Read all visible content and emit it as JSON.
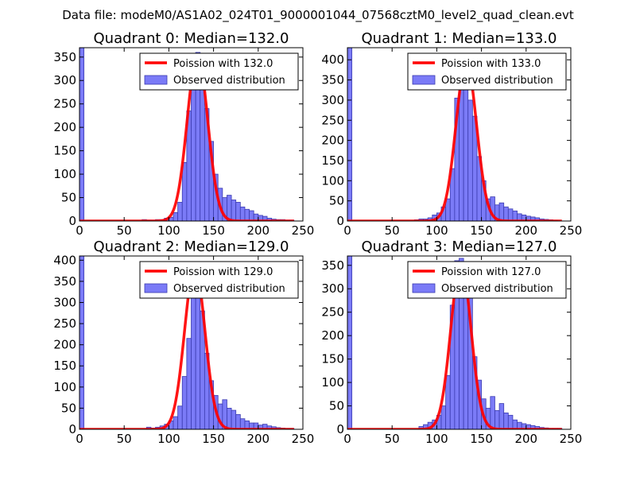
{
  "figure": {
    "suptitle": "Data file: modeM0/AS1A02_024T01_9000001044_07568cztM0_level2_quad_clean.evt"
  },
  "colors": {
    "hist_fill": "#7b7bf7",
    "hist_edge": "#3b3bb0",
    "poisson_line": "#ff0000",
    "frame": "#000000"
  },
  "chart_data": [
    {
      "type": "bar",
      "title": "Quadrant 0: Median=132.0",
      "xlim": [
        0,
        250
      ],
      "ylim": [
        0,
        370
      ],
      "xticks": [
        0,
        50,
        100,
        150,
        200,
        250
      ],
      "yticks": [
        0,
        50,
        100,
        150,
        200,
        250,
        300,
        350
      ],
      "legend": [
        "Poission with 132.0",
        "Observed distribution"
      ],
      "bin_edges": [
        0,
        5,
        70,
        75,
        80,
        85,
        90,
        95,
        100,
        105,
        110,
        115,
        120,
        125,
        130,
        135,
        140,
        145,
        150,
        155,
        160,
        165,
        170,
        175,
        180,
        185,
        190,
        195,
        200,
        205,
        210,
        215,
        220,
        225,
        230,
        235,
        240
      ],
      "counts": [
        370,
        0,
        3,
        2,
        2,
        3,
        3,
        6,
        8,
        18,
        40,
        125,
        235,
        320,
        360,
        320,
        240,
        170,
        100,
        70,
        50,
        55,
        45,
        40,
        30,
        25,
        22,
        15,
        12,
        10,
        6,
        4,
        3,
        3,
        2,
        2
      ],
      "poisson": {
        "mean": 132.0,
        "peak": 355,
        "sigma": 11.5,
        "x_range": [
          0,
          240
        ]
      }
    },
    {
      "type": "bar",
      "title": "Quadrant 1: Median=133.0",
      "xlim": [
        0,
        250
      ],
      "ylim": [
        0,
        430
      ],
      "xticks": [
        0,
        50,
        100,
        150,
        200,
        250
      ],
      "yticks": [
        0,
        50,
        100,
        150,
        200,
        250,
        300,
        350,
        400
      ],
      "legend": [
        "Poission with 133.0",
        "Observed distribution"
      ],
      "bin_edges": [
        0,
        5,
        75,
        80,
        85,
        90,
        95,
        100,
        105,
        110,
        115,
        120,
        125,
        130,
        135,
        140,
        145,
        150,
        155,
        160,
        165,
        170,
        175,
        180,
        185,
        190,
        195,
        200,
        205,
        210,
        215,
        220,
        225,
        230,
        235
      ],
      "counts": [
        430,
        0,
        3,
        5,
        5,
        8,
        15,
        20,
        35,
        55,
        130,
        305,
        410,
        340,
        300,
        260,
        160,
        100,
        55,
        60,
        40,
        45,
        35,
        30,
        25,
        18,
        15,
        12,
        10,
        8,
        5,
        4,
        3,
        2
      ],
      "poisson": {
        "mean": 133.0,
        "peak": 395,
        "sigma": 11.5,
        "x_range": [
          0,
          240
        ]
      }
    },
    {
      "type": "bar",
      "title": "Quadrant 2: Median=129.0",
      "xlim": [
        0,
        250
      ],
      "ylim": [
        0,
        410
      ],
      "xticks": [
        0,
        50,
        100,
        150,
        200,
        250
      ],
      "yticks": [
        0,
        50,
        100,
        150,
        200,
        250,
        300,
        350,
        400
      ],
      "legend": [
        "Poission with 129.0",
        "Observed distribution"
      ],
      "bin_edges": [
        0,
        5,
        75,
        80,
        85,
        90,
        95,
        100,
        105,
        110,
        115,
        120,
        125,
        130,
        135,
        140,
        145,
        150,
        155,
        160,
        165,
        170,
        175,
        180,
        185,
        190,
        195,
        200,
        205,
        210,
        215,
        220,
        225,
        230,
        235,
        240
      ],
      "counts": [
        410,
        0,
        5,
        3,
        5,
        8,
        12,
        20,
        30,
        55,
        125,
        215,
        320,
        380,
        280,
        180,
        115,
        80,
        60,
        70,
        50,
        45,
        35,
        25,
        20,
        15,
        15,
        10,
        12,
        8,
        6,
        4,
        3,
        2,
        2
      ],
      "poisson": {
        "mean": 129.0,
        "peak": 385,
        "sigma": 11.4,
        "x_range": [
          0,
          240
        ]
      }
    },
    {
      "type": "bar",
      "title": "Quadrant 3: Median=127.0",
      "xlim": [
        0,
        250
      ],
      "ylim": [
        0,
        370
      ],
      "xticks": [
        0,
        50,
        100,
        150,
        200,
        250
      ],
      "yticks": [
        0,
        50,
        100,
        150,
        200,
        250,
        300,
        350
      ],
      "legend": [
        "Poission with 127.0",
        "Observed distribution"
      ],
      "bin_edges": [
        0,
        5,
        80,
        85,
        90,
        95,
        100,
        105,
        110,
        115,
        120,
        125,
        130,
        135,
        140,
        145,
        150,
        155,
        160,
        165,
        170,
        175,
        180,
        185,
        190,
        195,
        200,
        205,
        210,
        215,
        220,
        225,
        230,
        235,
        240
      ],
      "counts": [
        370,
        0,
        6,
        10,
        15,
        20,
        30,
        50,
        115,
        265,
        360,
        365,
        320,
        295,
        155,
        105,
        65,
        45,
        70,
        40,
        55,
        35,
        30,
        20,
        15,
        12,
        10,
        8,
        6,
        4,
        3,
        2,
        2,
        2
      ],
      "poisson": {
        "mean": 127.0,
        "peak": 355,
        "sigma": 11.3,
        "x_range": [
          0,
          240
        ]
      }
    }
  ]
}
